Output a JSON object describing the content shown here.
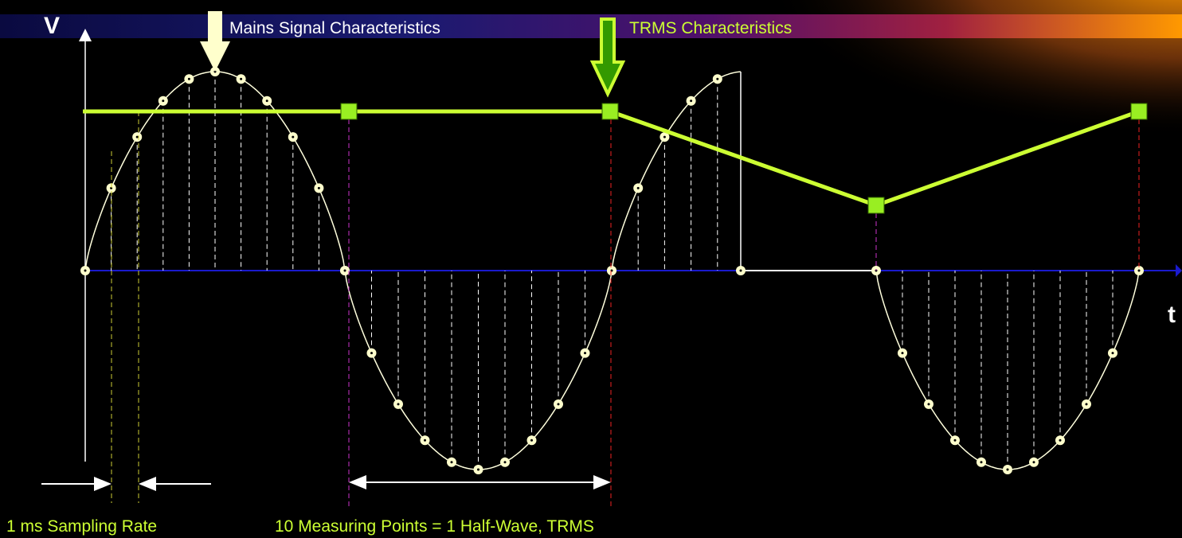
{
  "axis": {
    "y_label": "V",
    "x_label": "t"
  },
  "banner": {
    "left_title": "Mains Signal Characteristics",
    "right_title": "TRMS Characteristics"
  },
  "footer": {
    "sampling_label": "1 ms  Sampling Rate",
    "measuring_label": "10 Measuring Points = 1 Half-Wave, TRMS"
  }
}
